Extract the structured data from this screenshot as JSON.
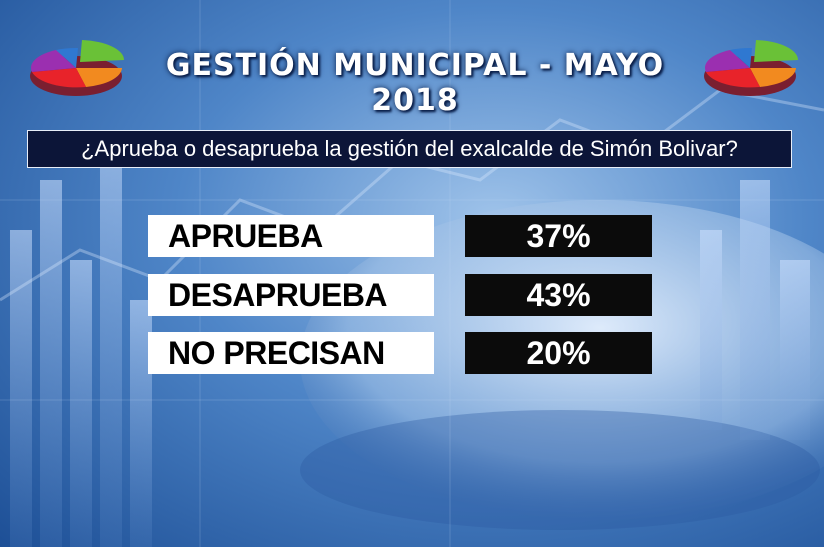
{
  "header": {
    "title": "GESTIÓN MUNICIPAL - MAYO 2018"
  },
  "question": "¿Aprueba o desaprueba la gestión del exalcalde de Simón Bolivar?",
  "chart_data": {
    "type": "table",
    "categories": [
      "APRUEBA",
      "DESAPRUEBA",
      "NO PRECISAN"
    ],
    "values": [
      37,
      43,
      20
    ],
    "value_labels": [
      "37%",
      "43%",
      "20%"
    ],
    "unit": "%"
  },
  "colors": {
    "question_bg": "#0c1538",
    "label_bg": "#ffffff",
    "value_bg": "#0b0b0b",
    "pie": [
      "#e8232a",
      "#f28a1f",
      "#9b2fb0",
      "#6ac137",
      "#2f78d1"
    ]
  },
  "icons": {
    "left": "pie-chart-icon",
    "right": "pie-chart-icon"
  }
}
